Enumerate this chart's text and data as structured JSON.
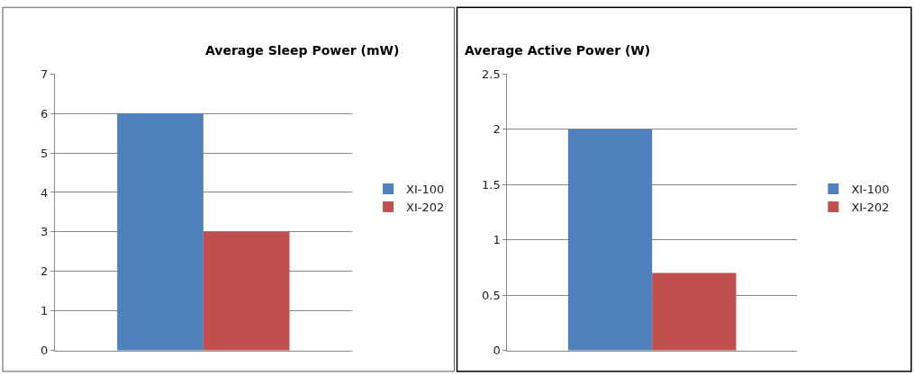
{
  "chart_data": [
    {
      "type": "bar",
      "title": "Average Sleep Power (mW)",
      "categories": [
        null
      ],
      "series": [
        {
          "name": "XI-100",
          "color": "#4f81bd",
          "values": [
            6
          ]
        },
        {
          "name": "XI-202",
          "color": "#c0504d",
          "values": [
            3
          ]
        }
      ],
      "ylim": [
        0,
        7
      ],
      "yticks": [
        0,
        1,
        2,
        3,
        4,
        5,
        6,
        7
      ],
      "grid": "y",
      "legend": "right"
    },
    {
      "type": "bar",
      "title": "Average Active Power (W)",
      "categories": [
        null
      ],
      "series": [
        {
          "name": "XI-100",
          "color": "#4f81bd",
          "values": [
            2
          ]
        },
        {
          "name": "XI-202",
          "color": "#c0504d",
          "values": [
            0.7
          ]
        }
      ],
      "ylim": [
        0,
        2.5
      ],
      "yticks": [
        0,
        0.5,
        1,
        1.5,
        2,
        2.5
      ],
      "grid": "y",
      "legend": "right"
    }
  ]
}
